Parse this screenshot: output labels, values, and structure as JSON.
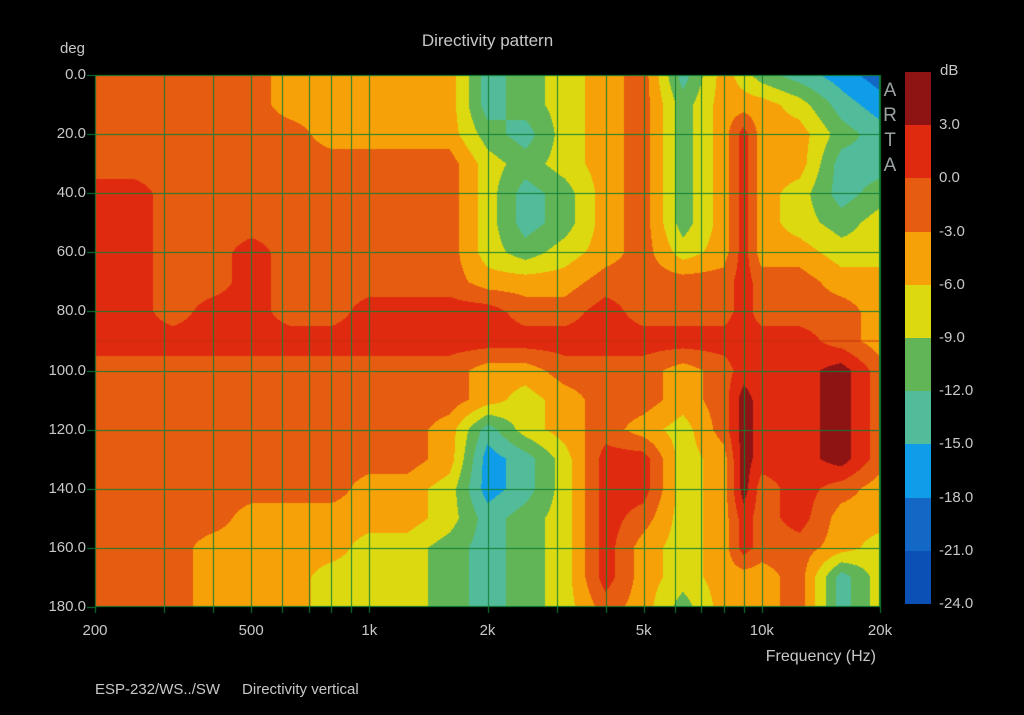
{
  "title": "Directivity pattern",
  "y_axis": {
    "unit": "deg",
    "tick_labels": [
      "0.0",
      "20.0",
      "40.0",
      "60.0",
      "80.0",
      "100.0",
      "120.0",
      "140.0",
      "160.0",
      "180.0"
    ]
  },
  "x_axis": {
    "label": "Frequency (Hz)",
    "tick_labels": [
      "200",
      "500",
      "1k",
      "2k",
      "5k",
      "10k",
      "20k"
    ],
    "tick_freqs_hz": [
      200,
      500,
      1000,
      2000,
      5000,
      10000,
      20000
    ]
  },
  "colorbar": {
    "unit": "dB",
    "tick_labels": [
      "3.0",
      "0.0",
      "-3.0",
      "-6.0",
      "-9.0",
      "-12.0",
      "-15.0",
      "-18.0",
      "-21.0",
      "-24.0"
    ],
    "segment_colors": [
      "#8e1414",
      "#e02a10",
      "#e65c10",
      "#f7a108",
      "#dcd911",
      "#62b556",
      "#52bb99",
      "#0f9ce8",
      "#1268c4",
      "#0b50b4"
    ]
  },
  "watermark": "ARTA",
  "footer": {
    "device": "ESP-232/WS../SW",
    "note": "Directivity vertical"
  },
  "colors": {
    "background": "#000000",
    "text": "#c8c8c8",
    "grid": "#0e7c33",
    "watermark": "#9aa3a3"
  },
  "chart_data": {
    "type": "heatmap",
    "title": "Directivity pattern",
    "xlabel": "Frequency (Hz)",
    "ylabel": "deg",
    "x_scale": "log",
    "x_range_hz": [
      200,
      20000
    ],
    "y_range_deg": [
      0,
      180
    ],
    "grid_freqs_hz": [
      300,
      400,
      500,
      600,
      700,
      800,
      900,
      1000,
      2000,
      3000,
      4000,
      5000,
      6000,
      7000,
      8000,
      9000,
      10000,
      20000
    ],
    "grid_angle_step_deg": 20,
    "value_band_edges_db": [
      3,
      0,
      -3,
      -6,
      -9,
      -12,
      -15,
      -18,
      -21,
      -24
    ],
    "band_colors": [
      "#8e1414",
      "#e02a10",
      "#e65c10",
      "#f7a108",
      "#dcd911",
      "#62b556",
      "#52bb99",
      "#0f9ce8",
      "#1268c4",
      "#0b50b4"
    ],
    "freq_hz": [
      200,
      250,
      315,
      400,
      500,
      630,
      800,
      1000,
      1250,
      1600,
      2000,
      2500,
      3150,
      4000,
      5000,
      6300,
      8000,
      9000,
      10000,
      12500,
      16000,
      20000
    ],
    "angle_deg": [
      0,
      10,
      20,
      30,
      40,
      50,
      60,
      70,
      80,
      90,
      100,
      110,
      120,
      130,
      140,
      150,
      160,
      170,
      180
    ],
    "values_db": [
      [
        -1.5,
        -1.5,
        -1.5,
        -1.5,
        -1.5,
        -4.5,
        -4.5,
        -4.5,
        -4.5,
        -4.5,
        -13.5,
        -10.5,
        -7.5,
        -4.5,
        -1.5,
        -13.5,
        -4.5,
        -7.5,
        -10.5,
        -13.5,
        -16.5,
        -19.5
      ],
      [
        -1.5,
        -1.5,
        -1.5,
        -1.5,
        -1.5,
        -4.5,
        -4.5,
        -4.5,
        -4.5,
        -4.5,
        -13.5,
        -10.5,
        -7.5,
        -4.5,
        -1.5,
        -10.5,
        -4.5,
        -4.5,
        -4.5,
        -7.5,
        -13.5,
        -16.5
      ],
      [
        -1.5,
        -1.5,
        -1.5,
        -1.5,
        -1.5,
        -1.5,
        -4.5,
        -4.5,
        -4.5,
        -4.5,
        -10.5,
        -13.5,
        -7.5,
        -4.5,
        -1.5,
        -10.5,
        -4.5,
        1.5,
        -4.5,
        -4.5,
        -10.5,
        -13.5
      ],
      [
        -1.5,
        -1.5,
        -1.5,
        -1.5,
        -1.5,
        -1.5,
        -1.5,
        -1.5,
        -1.5,
        -1.5,
        -7.5,
        -10.5,
        -7.5,
        -4.5,
        -1.5,
        -10.5,
        -4.5,
        1.5,
        -4.5,
        -4.5,
        -13.5,
        -13.5
      ],
      [
        1.5,
        1.5,
        -1.5,
        -1.5,
        -1.5,
        -1.5,
        -1.5,
        -1.5,
        -1.5,
        -1.5,
        -7.5,
        -13.5,
        -10.5,
        -4.5,
        -1.5,
        -10.5,
        -4.5,
        1.5,
        -4.5,
        -7.5,
        -13.5,
        -10.5
      ],
      [
        1.5,
        1.5,
        -1.5,
        -1.5,
        -1.5,
        -1.5,
        -1.5,
        -1.5,
        -1.5,
        -1.5,
        -7.5,
        -13.5,
        -10.5,
        -4.5,
        -1.5,
        -10.5,
        -4.5,
        1.5,
        -4.5,
        -7.5,
        -10.5,
        -7.5
      ],
      [
        1.5,
        1.5,
        -1.5,
        -1.5,
        1.5,
        -1.5,
        -1.5,
        -1.5,
        -1.5,
        -1.5,
        -7.5,
        -10.5,
        -7.5,
        -4.5,
        -1.5,
        -7.5,
        -4.5,
        1.5,
        -4.5,
        -4.5,
        -7.5,
        -7.5
      ],
      [
        1.5,
        1.5,
        -1.5,
        -1.5,
        1.5,
        -1.5,
        -1.5,
        -1.5,
        -1.5,
        -1.5,
        -4.5,
        -4.5,
        -4.5,
        -1.5,
        -1.5,
        -1.5,
        -1.5,
        1.5,
        -1.5,
        -1.5,
        -4.5,
        -4.5
      ],
      [
        1.5,
        1.5,
        -1.5,
        1.5,
        1.5,
        -1.5,
        -1.5,
        1.5,
        1.5,
        1.5,
        1.5,
        -1.5,
        -1.5,
        1.5,
        -1.5,
        -1.5,
        -1.5,
        1.5,
        -1.5,
        -1.5,
        -1.5,
        -4.5
      ],
      [
        1.5,
        1.5,
        1.5,
        1.5,
        1.5,
        1.5,
        1.5,
        1.5,
        1.5,
        1.5,
        1.5,
        1.5,
        1.5,
        1.5,
        1.5,
        1.5,
        1.5,
        1.5,
        1.5,
        1.5,
        -1.5,
        -4.5
      ],
      [
        -1.5,
        -1.5,
        -1.5,
        -1.5,
        -1.5,
        -1.5,
        -1.5,
        -1.5,
        -1.5,
        -1.5,
        -4.5,
        -4.5,
        -1.5,
        -1.5,
        -1.5,
        -4.5,
        -1.5,
        1.5,
        1.5,
        1.5,
        4.5,
        -1.5
      ],
      [
        -1.5,
        -1.5,
        -1.5,
        -1.5,
        -1.5,
        -1.5,
        -1.5,
        -1.5,
        -1.5,
        -1.5,
        -4.5,
        -7.5,
        -4.5,
        -1.5,
        -1.5,
        -4.5,
        -1.5,
        4.5,
        1.5,
        1.5,
        4.5,
        -1.5
      ],
      [
        -1.5,
        -1.5,
        -1.5,
        -1.5,
        -1.5,
        -1.5,
        -1.5,
        -1.5,
        -1.5,
        -4.5,
        -13.5,
        -7.5,
        -4.5,
        -1.5,
        -4.5,
        -7.5,
        -1.5,
        4.5,
        1.5,
        1.5,
        4.5,
        -1.5
      ],
      [
        -1.5,
        -1.5,
        -1.5,
        -1.5,
        -1.5,
        -1.5,
        -1.5,
        -1.5,
        -1.5,
        -4.5,
        -16.5,
        -13.5,
        -7.5,
        1.5,
        1.5,
        -7.5,
        -4.5,
        4.5,
        1.5,
        1.5,
        4.5,
        -1.5
      ],
      [
        -1.5,
        -1.5,
        -1.5,
        -1.5,
        -1.5,
        -1.5,
        -1.5,
        -4.5,
        -4.5,
        -7.5,
        -16.5,
        -13.5,
        -7.5,
        1.5,
        1.5,
        -7.5,
        -4.5,
        4.5,
        -1.5,
        1.5,
        -1.5,
        -4.5
      ],
      [
        -1.5,
        -1.5,
        -1.5,
        -1.5,
        -4.5,
        -4.5,
        -4.5,
        -4.5,
        -4.5,
        -7.5,
        -13.5,
        -10.5,
        -7.5,
        1.5,
        -1.5,
        -7.5,
        -4.5,
        1.5,
        -1.5,
        1.5,
        -4.5,
        -4.5
      ],
      [
        -1.5,
        -1.5,
        -1.5,
        -4.5,
        -4.5,
        -4.5,
        -4.5,
        -7.5,
        -7.5,
        -10.5,
        -13.5,
        -10.5,
        -7.5,
        1.5,
        -4.5,
        -7.5,
        -4.5,
        1.5,
        -1.5,
        -1.5,
        -4.5,
        -7.5
      ],
      [
        -1.5,
        -1.5,
        -1.5,
        -4.5,
        -4.5,
        -4.5,
        -7.5,
        -7.5,
        -7.5,
        -10.5,
        -13.5,
        -10.5,
        -7.5,
        1.5,
        -4.5,
        -7.5,
        -4.5,
        -4.5,
        -4.5,
        -1.5,
        -13.5,
        -7.5
      ],
      [
        -1.5,
        -1.5,
        -1.5,
        -4.5,
        -4.5,
        -4.5,
        -7.5,
        -7.5,
        -7.5,
        -10.5,
        -13.5,
        -10.5,
        -7.5,
        -1.5,
        -4.5,
        -10.5,
        -4.5,
        -4.5,
        -4.5,
        -1.5,
        -13.5,
        -7.5
      ]
    ]
  }
}
